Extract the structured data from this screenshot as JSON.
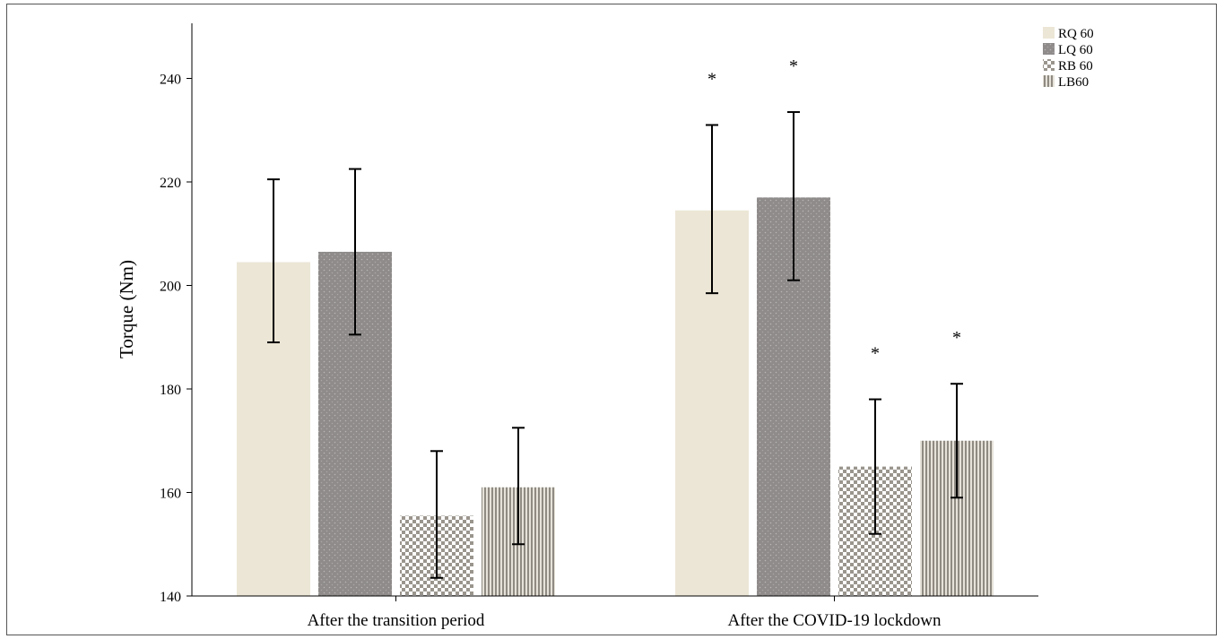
{
  "chart_data": {
    "type": "bar",
    "ylabel": "Torque (Nm)",
    "xlabel": "",
    "ylim": [
      140,
      250
    ],
    "yticks": [
      140,
      160,
      180,
      200,
      220,
      240
    ],
    "grid": false,
    "legend_position": "top-right",
    "categories": [
      "After the transition period",
      "After the COVID-19 lockdown"
    ],
    "series": [
      {
        "name": "RQ 60",
        "values": [
          204.5,
          214.5
        ],
        "err_low": [
          189,
          198.5
        ],
        "err_high": [
          220.5,
          231
        ],
        "significance": [
          "",
          "*"
        ],
        "color": "#ece6d6",
        "pattern": "diagonal"
      },
      {
        "name": "LQ 60",
        "values": [
          206.5,
          217
        ],
        "err_low": [
          190.5,
          201
        ],
        "err_high": [
          222.5,
          233.5
        ],
        "significance": [
          "",
          "*"
        ],
        "color": "#8e8b8a",
        "pattern": "dots"
      },
      {
        "name": "RB 60",
        "values": [
          155.5,
          165
        ],
        "err_low": [
          143.5,
          152
        ],
        "err_high": [
          168,
          178
        ],
        "significance": [
          "",
          "*"
        ],
        "color": "#b7b2a8",
        "pattern": "checker"
      },
      {
        "name": "LB60",
        "values": [
          161,
          170
        ],
        "err_low": [
          150,
          159
        ],
        "err_high": [
          172.5,
          181
        ],
        "significance": [
          "",
          "*"
        ],
        "color": "#aba59c",
        "pattern": "vertical-stripes"
      }
    ]
  }
}
